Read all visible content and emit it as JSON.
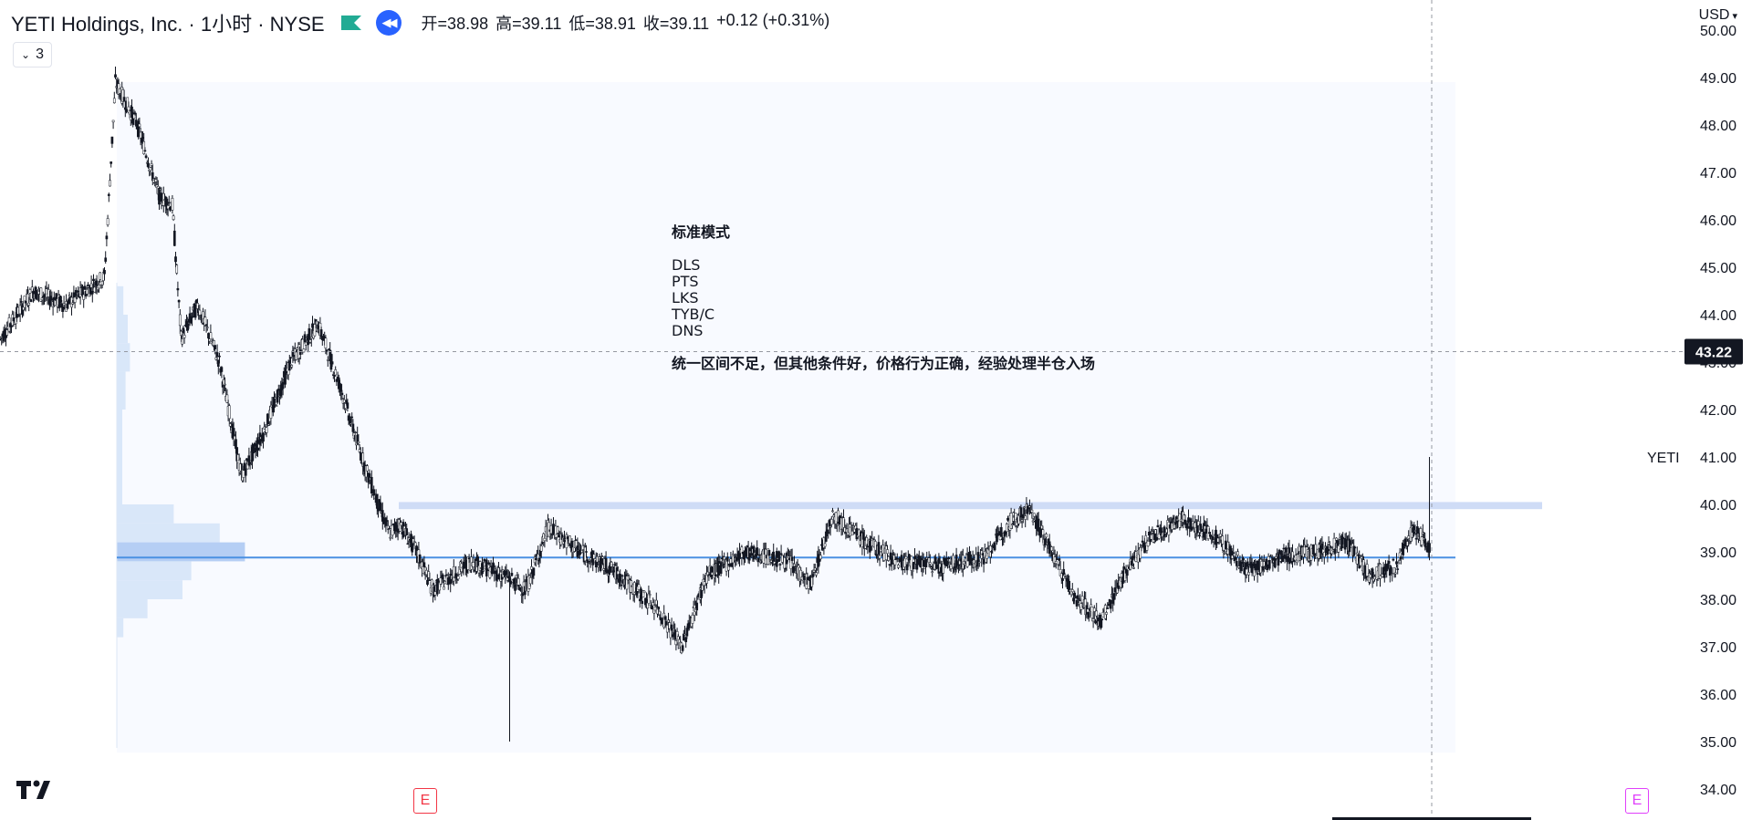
{
  "header": {
    "title": "YETI Holdings, Inc. · 1小时 · NYSE",
    "ohlc": {
      "open_label": "开=38.98",
      "high_label": "高=39.11",
      "low_label": "低=38.91",
      "close_label": "收=39.11",
      "change_label": "+0.12 (+0.31%)"
    }
  },
  "indicator_toggle": {
    "label": "3"
  },
  "currency_label": "USD",
  "symbol_label": "YETI",
  "note": {
    "heading": "标准模式",
    "lines": [
      "DLS",
      "PTS",
      "LKS",
      "TYB/C",
      "DNS"
    ],
    "body": "统一区间不足，但其他条件好，价格行为正确，经验处理半仓入场"
  },
  "crosshair_price_label": "43.22",
  "earnings_badges": [
    "E",
    "E"
  ],
  "colors": {
    "accent": "#2962ff",
    "poc_line": "#4a90e2",
    "zone": "#cfdcf6",
    "volume_profile": "#d4e3f8",
    "candle": "#131722"
  },
  "chart_data": {
    "type": "candlestick",
    "title": "YETI Holdings, Inc. · 1小时 · NYSE",
    "y_tick_labels": [
      "50.00",
      "49.00",
      "48.00",
      "47.00",
      "46.00",
      "45.00",
      "44.00",
      "43.00",
      "42.00",
      "41.00",
      "40.00",
      "39.00",
      "38.00",
      "37.00",
      "36.00",
      "35.00",
      "34.00"
    ],
    "ylim": [
      33.8,
      50.2
    ],
    "grid": false,
    "crosshair": {
      "price": 43.22
    },
    "resistance_zone": [
      39.9,
      40.05
    ],
    "poc_price": 38.88,
    "last_close": 39.11,
    "last_high": 41.0,
    "price_path_anchors": [
      [
        0,
        43.5
      ],
      [
        30,
        44.5
      ],
      [
        60,
        44.2
      ],
      [
        95,
        44.8
      ],
      [
        105,
        48.9
      ],
      [
        125,
        48.0
      ],
      [
        145,
        46.5
      ],
      [
        157,
        46.3
      ],
      [
        165,
        43.5
      ],
      [
        180,
        44.2
      ],
      [
        200,
        43.0
      ],
      [
        220,
        40.6
      ],
      [
        240,
        41.5
      ],
      [
        265,
        43.0
      ],
      [
        290,
        43.8
      ],
      [
        310,
        42.5
      ],
      [
        330,
        41.0
      ],
      [
        345,
        40.0
      ],
      [
        355,
        39.4
      ],
      [
        365,
        39.6
      ],
      [
        380,
        39.0
      ],
      [
        395,
        38.2
      ],
      [
        430,
        38.8
      ],
      [
        460,
        38.5
      ],
      [
        480,
        38.2
      ],
      [
        500,
        39.5
      ],
      [
        530,
        39.0
      ],
      [
        560,
        38.6
      ],
      [
        600,
        37.8
      ],
      [
        622,
        37.0
      ],
      [
        645,
        38.5
      ],
      [
        680,
        39.0
      ],
      [
        720,
        38.8
      ],
      [
        740,
        38.3
      ],
      [
        760,
        39.8
      ],
      [
        790,
        39.2
      ],
      [
        820,
        38.8
      ],
      [
        860,
        38.7
      ],
      [
        900,
        38.9
      ],
      [
        920,
        39.6
      ],
      [
        940,
        39.9
      ],
      [
        960,
        39.0
      ],
      [
        980,
        38.1
      ],
      [
        1005,
        37.5
      ],
      [
        1025,
        38.5
      ],
      [
        1050,
        39.3
      ],
      [
        1080,
        39.7
      ],
      [
        1110,
        39.3
      ],
      [
        1140,
        38.6
      ],
      [
        1170,
        38.9
      ],
      [
        1200,
        39.0
      ],
      [
        1230,
        39.2
      ],
      [
        1250,
        38.5
      ],
      [
        1275,
        38.7
      ],
      [
        1290,
        39.5
      ],
      [
        1305,
        39.11
      ]
    ],
    "volume_profile": [
      {
        "price_low": 39.6,
        "price_high": 40.0,
        "volume": 52
      },
      {
        "price_low": 39.2,
        "price_high": 39.6,
        "volume": 94
      },
      {
        "price_low": 38.8,
        "price_high": 39.2,
        "volume": 117
      },
      {
        "price_low": 38.4,
        "price_high": 38.8,
        "volume": 68
      },
      {
        "price_low": 38.0,
        "price_high": 38.4,
        "volume": 60
      },
      {
        "price_low": 37.6,
        "price_high": 38.0,
        "volume": 28
      },
      {
        "price_low": 37.2,
        "price_high": 37.6,
        "volume": 6
      },
      {
        "price_low": 44.0,
        "price_high": 44.6,
        "volume": 6
      },
      {
        "price_low": 43.4,
        "price_high": 44.0,
        "volume": 10
      },
      {
        "price_low": 42.8,
        "price_high": 43.4,
        "volume": 12
      },
      {
        "price_low": 42.0,
        "price_high": 42.8,
        "volume": 8
      },
      {
        "price_low": 40.0,
        "price_high": 42.0,
        "volume": 5
      }
    ]
  }
}
